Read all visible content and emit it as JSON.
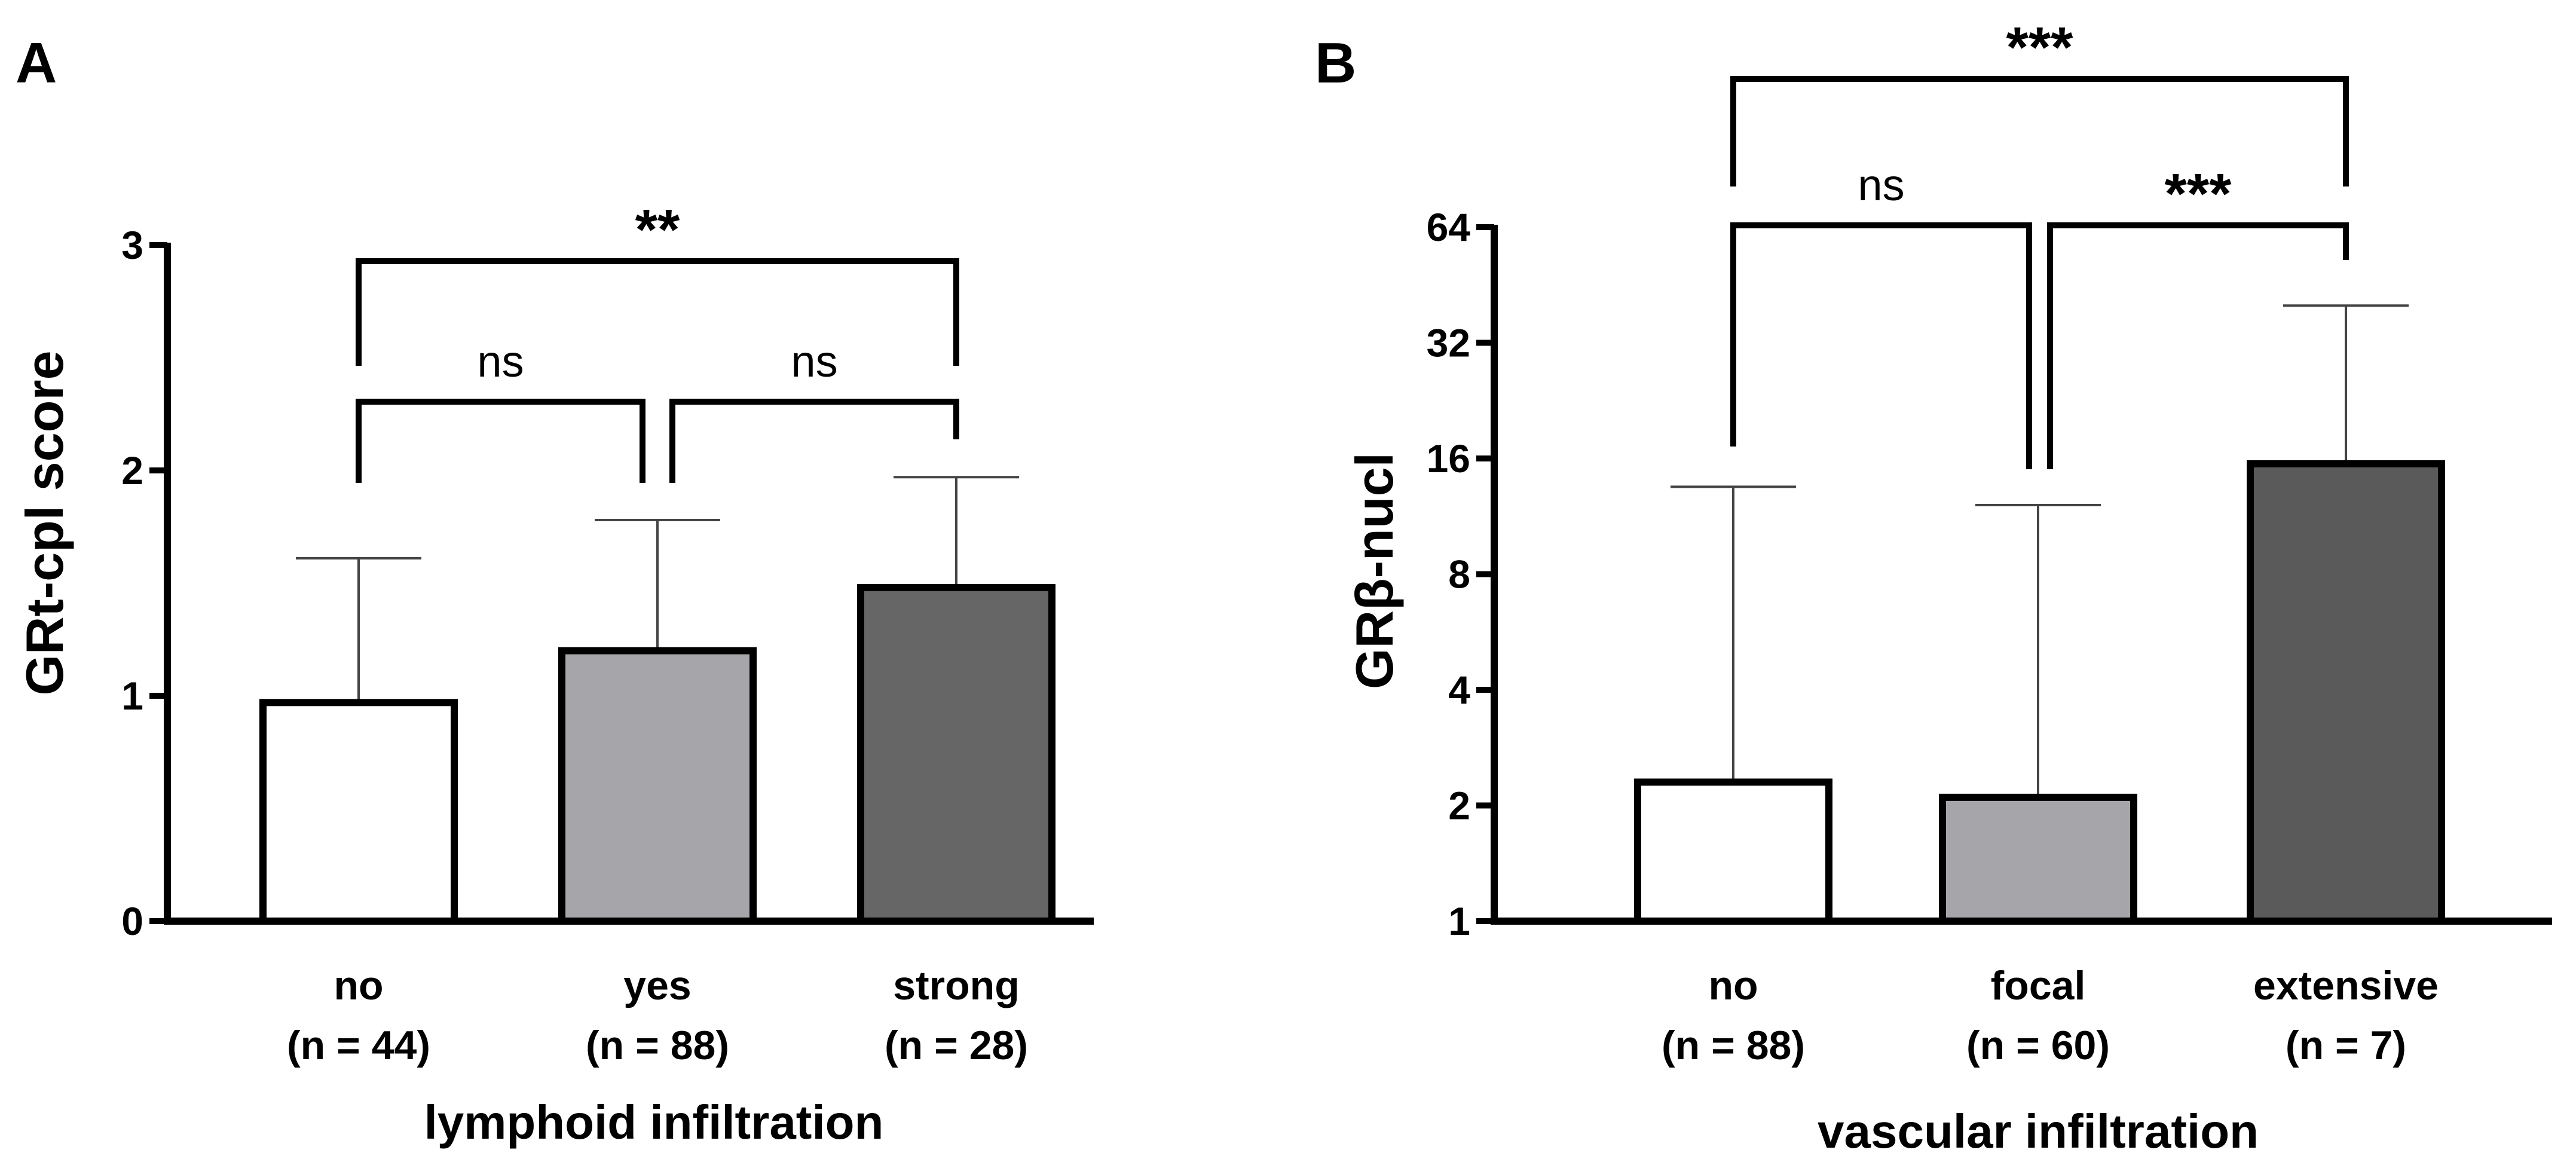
{
  "chart_data": [
    {
      "type": "bar",
      "panel": "A",
      "categories": [
        "no",
        "yes",
        "strong"
      ],
      "n_labels": [
        "(n = 44)",
        "(n = 88)",
        "(n = 28)"
      ],
      "values": [
        0.97,
        1.2,
        1.48
      ],
      "error_upper": [
        1.61,
        1.78,
        1.97
      ],
      "bar_colors": [
        "#ffffff",
        "#a6a6aa",
        "#666666"
      ],
      "title": "",
      "xlabel": "lymphoid infiltration",
      "ylabel": "GRt-cpl score",
      "ylim": [
        0,
        3
      ],
      "yticks": [
        "0",
        "1",
        "2",
        "3"
      ],
      "scale": "linear",
      "significance": [
        {
          "from": 0,
          "to": 1,
          "label": "ns"
        },
        {
          "from": 1,
          "to": 2,
          "label": "ns"
        },
        {
          "from": 0,
          "to": 2,
          "label": "**"
        }
      ],
      "grid": false,
      "legend": "none"
    },
    {
      "type": "bar",
      "panel": "B",
      "categories": [
        "no",
        "focal",
        "extensive"
      ],
      "n_labels": [
        "(n = 88)",
        "(n = 60)",
        "(n = 7)"
      ],
      "values": [
        2.3,
        2.1,
        15.5
      ],
      "error_upper": [
        13.5,
        12.1,
        40
      ],
      "bar_colors": [
        "#ffffff",
        "#a6a6aa",
        "#5a5a5a"
      ],
      "title": "",
      "xlabel": "vascular infiltration",
      "ylabel": "GRβ-nucl",
      "ylim": [
        1,
        64
      ],
      "yticks": [
        "1",
        "2",
        "4",
        "8",
        "16",
        "32",
        "64"
      ],
      "scale": "log2",
      "significance": [
        {
          "from": 0,
          "to": 1,
          "label": "ns"
        },
        {
          "from": 1,
          "to": 2,
          "label": "***"
        },
        {
          "from": 0,
          "to": 2,
          "label": "***"
        }
      ],
      "grid": false,
      "legend": "none"
    }
  ]
}
